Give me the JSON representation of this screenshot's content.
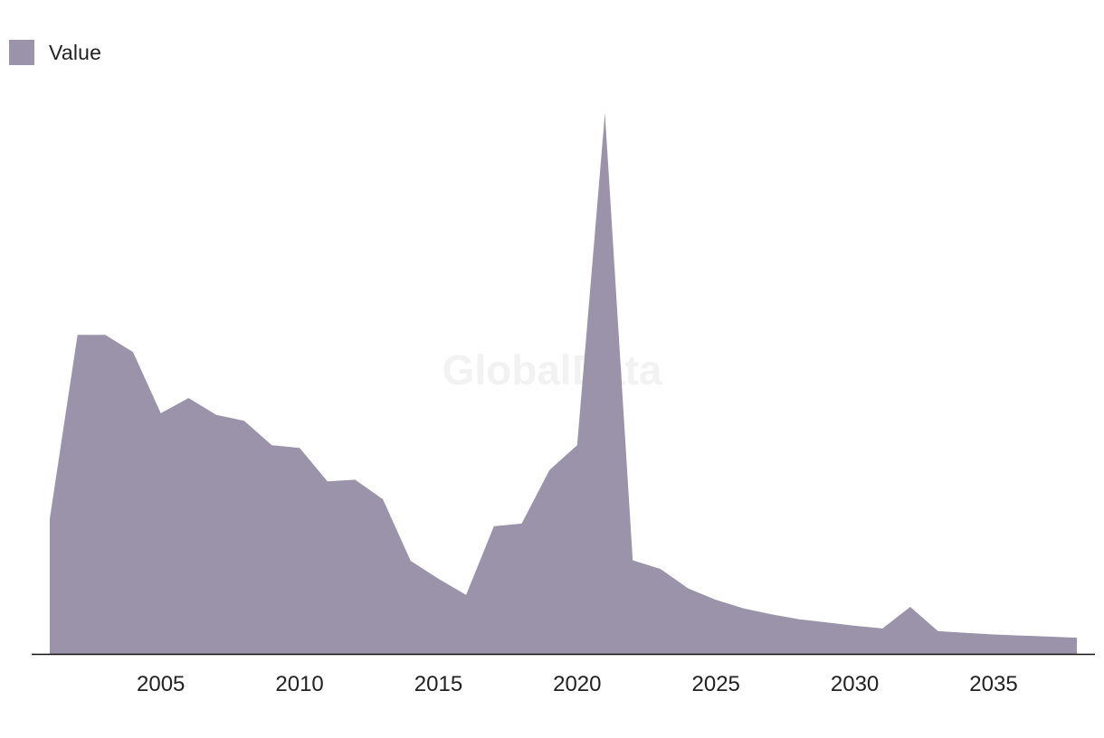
{
  "watermark": "GlobalData",
  "colors": {
    "area": "#9b93aa",
    "axis": "#111111",
    "text": "#222222"
  },
  "chart_data": {
    "type": "area",
    "title": "",
    "xlabel": "",
    "ylabel": "",
    "legend": {
      "position": "top-left",
      "entries": [
        "Value"
      ]
    },
    "grid": false,
    "x_ticks": [
      2005,
      2010,
      2015,
      2020,
      2025,
      2030,
      2035
    ],
    "xlim": [
      2001,
      2038
    ],
    "ylim": [
      0,
      100
    ],
    "series": [
      {
        "name": "Value",
        "color": "#9b93aa",
        "x": [
          2001,
          2002,
          2003,
          2004,
          2005,
          2006,
          2007,
          2008,
          2009,
          2010,
          2011,
          2012,
          2013,
          2014,
          2015,
          2016,
          2017,
          2018,
          2019,
          2020,
          2021,
          2022,
          2023,
          2024,
          2025,
          2026,
          2027,
          2028,
          2029,
          2030,
          2031,
          2032,
          2033,
          2034,
          2035,
          2036,
          2037,
          2038
        ],
        "values": [
          25.0,
          59.0,
          59.0,
          55.8,
          44.5,
          47.3,
          44.2,
          43.1,
          38.6,
          38.1,
          31.9,
          32.2,
          28.6,
          17.2,
          13.9,
          10.9,
          23.6,
          24.1,
          34.0,
          38.6,
          100.0,
          17.3,
          15.7,
          12.1,
          10.0,
          8.4,
          7.3,
          6.4,
          5.8,
          5.2,
          4.7,
          8.7,
          4.2,
          3.9,
          3.6,
          3.4,
          3.2,
          3.0
        ]
      }
    ]
  }
}
